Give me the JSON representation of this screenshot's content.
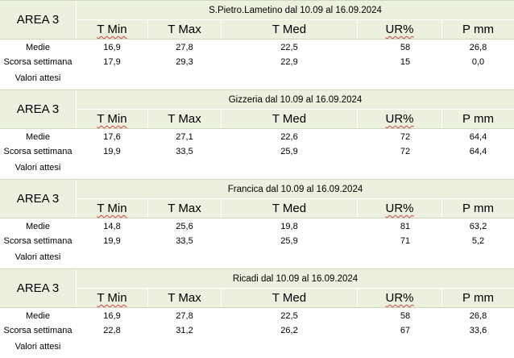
{
  "columns": [
    "T Min",
    "T Max",
    "T Med",
    "UR%",
    "P mm"
  ],
  "row_labels": [
    "Medie",
    "Scorsa settimana",
    "Valori attesi"
  ],
  "blocks": [
    {
      "area": "AREA 3",
      "title": "S.Pietro.Lametino dal 10.09 al 16.09.2024",
      "medie": [
        "16,9",
        "27,8",
        "22,5",
        "58",
        "26,8"
      ],
      "scorsa": [
        "17,9",
        "29,3",
        "22,9",
        "15",
        "0,0"
      ]
    },
    {
      "area": "AREA 3",
      "title": "Gizzeria dal 10.09 al 16.09.2024",
      "medie": [
        "17,6",
        "27,1",
        "22,6",
        "72",
        "64,4"
      ],
      "scorsa": [
        "19,9",
        "33,5",
        "25,9",
        "72",
        "64,4"
      ]
    },
    {
      "area": "AREA 3",
      "title": "Francica dal 10.09 al 16.09.2024",
      "medie": [
        "14,8",
        "25,6",
        "19,8",
        "81",
        "63,2"
      ],
      "scorsa": [
        "19,9",
        "33,5",
        "25,9",
        "71",
        "5,2"
      ]
    },
    {
      "area": "AREA 3",
      "title": "Ricadi  dal 10.09 al 16.09.2024",
      "medie": [
        "16,9",
        "27,8",
        "22,5",
        "58",
        "26,8"
      ],
      "scorsa": [
        "22,8",
        "31,2",
        "26,2",
        "67",
        "33,6"
      ]
    }
  ]
}
